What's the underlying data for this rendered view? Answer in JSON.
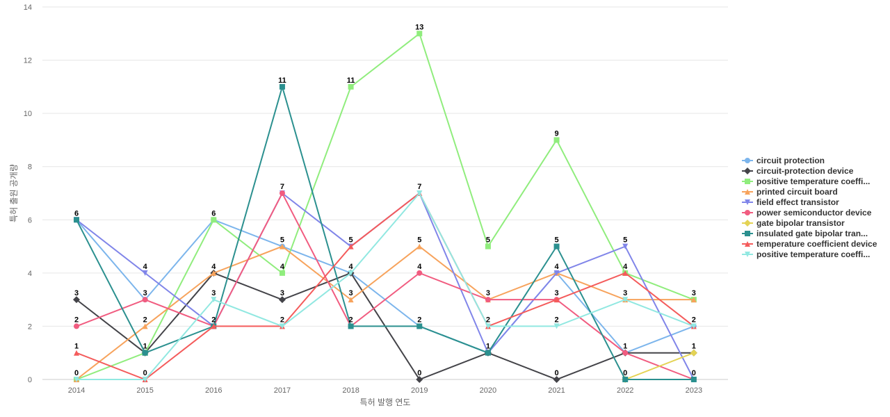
{
  "chart_data": {
    "type": "line",
    "title": "",
    "xlabel": "특허 발행 연도",
    "ylabel": "특허 출원 공개량",
    "categories": [
      "2014",
      "2015",
      "2016",
      "2017",
      "2018",
      "2019",
      "2020",
      "2021",
      "2022",
      "2023"
    ],
    "ylim": [
      0,
      14
    ],
    "yticks": [
      0,
      2,
      4,
      6,
      8,
      10,
      12,
      14
    ],
    "grid": true,
    "legend_position": "right",
    "series": [
      {
        "name": "circuit protection",
        "color": "#7cb5ec",
        "marker": "circle",
        "values": [
          6,
          3,
          6,
          5,
          4,
          2,
          1,
          4,
          1,
          2
        ]
      },
      {
        "name": "circuit-protection device",
        "color": "#434348",
        "marker": "diamond",
        "values": [
          3,
          1,
          4,
          3,
          4,
          0,
          1,
          0,
          1,
          1
        ]
      },
      {
        "name": "positive temperature coeffi...",
        "color": "#90ed7d",
        "marker": "square",
        "values": [
          0,
          1,
          6,
          4,
          11,
          13,
          5,
          9,
          4,
          3
        ]
      },
      {
        "name": "printed circuit board",
        "color": "#f7a35c",
        "marker": "triangle",
        "values": [
          0,
          2,
          4,
          5,
          3,
          5,
          3,
          4,
          3,
          3
        ]
      },
      {
        "name": "field effect transistor",
        "color": "#8085e9",
        "marker": "triangle-down",
        "values": [
          6,
          4,
          2,
          7,
          5,
          7,
          1,
          4,
          5,
          0
        ]
      },
      {
        "name": "power semiconductor device",
        "color": "#f15c80",
        "marker": "circle",
        "values": [
          2,
          3,
          2,
          7,
          2,
          4,
          3,
          3,
          1,
          0
        ]
      },
      {
        "name": "gate bipolar transistor",
        "color": "#e4d354",
        "marker": "diamond",
        "values": [
          null,
          null,
          null,
          null,
          null,
          null,
          null,
          null,
          0,
          1
        ]
      },
      {
        "name": "insulated gate bipolar tran...",
        "color": "#2b908f",
        "marker": "square",
        "values": [
          6,
          1,
          2,
          11,
          2,
          2,
          1,
          5,
          0,
          0
        ]
      },
      {
        "name": "temperature coefficient device",
        "color": "#f45b5b",
        "marker": "triangle",
        "values": [
          1,
          0,
          2,
          2,
          5,
          7,
          2,
          3,
          4,
          2
        ]
      },
      {
        "name": "positive temperature coeffi...",
        "color": "#91e8e1",
        "marker": "triangle-down",
        "values": [
          0,
          0,
          3,
          2,
          4,
          7,
          2,
          2,
          3,
          2
        ]
      }
    ],
    "data_labels": [
      {
        "category": "2014",
        "value": 6,
        "text": "6"
      },
      {
        "category": "2014",
        "value": 3,
        "text": "3"
      },
      {
        "category": "2014",
        "value": 2,
        "text": "2"
      },
      {
        "category": "2014",
        "value": 1,
        "text": "1"
      },
      {
        "category": "2014",
        "value": 0,
        "text": "0"
      },
      {
        "category": "2015",
        "value": 4,
        "text": "4"
      },
      {
        "category": "2015",
        "value": 3,
        "text": "3"
      },
      {
        "category": "2015",
        "value": 2,
        "text": "2"
      },
      {
        "category": "2015",
        "value": 1,
        "text": "1"
      },
      {
        "category": "2015",
        "value": 0,
        "text": "0"
      },
      {
        "category": "2016",
        "value": 6,
        "text": "6"
      },
      {
        "category": "2016",
        "value": 4,
        "text": "4"
      },
      {
        "category": "2016",
        "value": 3,
        "text": "3"
      },
      {
        "category": "2016",
        "value": 2,
        "text": "2"
      },
      {
        "category": "2017",
        "value": 11,
        "text": "11"
      },
      {
        "category": "2017",
        "value": 7,
        "text": "7"
      },
      {
        "category": "2017",
        "value": 5,
        "text": "5"
      },
      {
        "category": "2017",
        "value": 4,
        "text": "4"
      },
      {
        "category": "2017",
        "value": 3,
        "text": "3"
      },
      {
        "category": "2017",
        "value": 2,
        "text": "2"
      },
      {
        "category": "2018",
        "value": 11,
        "text": "11"
      },
      {
        "category": "2018",
        "value": 5,
        "text": "5"
      },
      {
        "category": "2018",
        "value": 4,
        "text": "4"
      },
      {
        "category": "2018",
        "value": 3,
        "text": "3"
      },
      {
        "category": "2018",
        "value": 2,
        "text": "2"
      },
      {
        "category": "2019",
        "value": 13,
        "text": "13"
      },
      {
        "category": "2019",
        "value": 7,
        "text": "7"
      },
      {
        "category": "2019",
        "value": 5,
        "text": "5"
      },
      {
        "category": "2019",
        "value": 4,
        "text": "4"
      },
      {
        "category": "2019",
        "value": 2,
        "text": "2"
      },
      {
        "category": "2019",
        "value": 0,
        "text": "0"
      },
      {
        "category": "2020",
        "value": 5,
        "text": "5"
      },
      {
        "category": "2020",
        "value": 3,
        "text": "3"
      },
      {
        "category": "2020",
        "value": 2,
        "text": "2"
      },
      {
        "category": "2020",
        "value": 1,
        "text": "1"
      },
      {
        "category": "2021",
        "value": 9,
        "text": "9"
      },
      {
        "category": "2021",
        "value": 5,
        "text": "5"
      },
      {
        "category": "2021",
        "value": 4,
        "text": "4"
      },
      {
        "category": "2021",
        "value": 3,
        "text": "3"
      },
      {
        "category": "2021",
        "value": 2,
        "text": "2"
      },
      {
        "category": "2021",
        "value": 0,
        "text": "0"
      },
      {
        "category": "2022",
        "value": 5,
        "text": "5"
      },
      {
        "category": "2022",
        "value": 4,
        "text": "4"
      },
      {
        "category": "2022",
        "value": 3,
        "text": "3"
      },
      {
        "category": "2022",
        "value": 1,
        "text": "1"
      },
      {
        "category": "2022",
        "value": 0,
        "text": "0"
      },
      {
        "category": "2023",
        "value": 3,
        "text": "3"
      },
      {
        "category": "2023",
        "value": 2,
        "text": "2"
      },
      {
        "category": "2023",
        "value": 1,
        "text": "1"
      },
      {
        "category": "2023",
        "value": 0,
        "text": "0"
      }
    ]
  }
}
